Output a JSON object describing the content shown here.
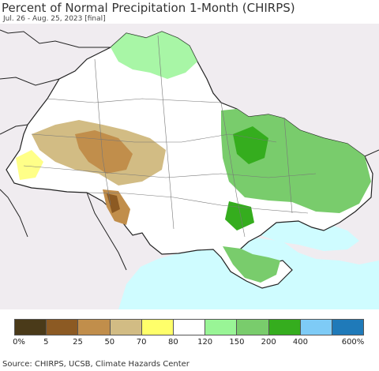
{
  "header": {
    "title": "Percent of Normal Precipitation 1-Month (CHIRPS)",
    "subtitle": "Jul. 26 - Aug. 25, 2023 [final]"
  },
  "legend": {
    "colors": [
      "#4a3a19",
      "#8c5a23",
      "#c18e4b",
      "#d2bc84",
      "#ffff6a",
      "#ffffff",
      "#99f596",
      "#79cc6c",
      "#35ad1e",
      "#7ecbf6",
      "#1f7ab9"
    ],
    "ticks": [
      "0%",
      "5",
      "25",
      "50",
      "70",
      "80",
      "120",
      "150",
      "200",
      "400",
      "600%"
    ]
  },
  "map_colors": {
    "land_bg": "#f0ecf0",
    "ukraine": "#ffffff",
    "sea": "#cffcff",
    "border": "#222222"
  },
  "footer": {
    "source": "Source: CHIRPS, UCSB, Climate Hazards Center"
  }
}
